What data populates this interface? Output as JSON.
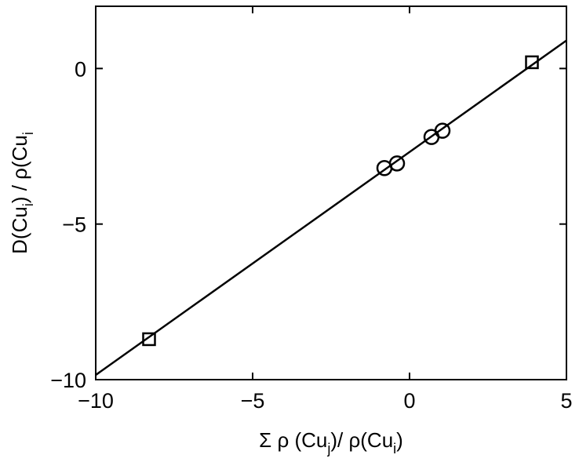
{
  "chart_data": {
    "type": "scatter",
    "title": "",
    "xlabel": {
      "parts": [
        {
          "text": "Σ ρ (Cu",
          "shift": "none"
        },
        {
          "text": "j",
          "shift": "sub"
        },
        {
          "text": ")/ ρ(Cu",
          "shift": "none"
        },
        {
          "text": "i",
          "shift": "sub"
        },
        {
          "text": ")",
          "shift": "none"
        }
      ]
    },
    "ylabel": {
      "parts": [
        {
          "text": "D(Cu",
          "shift": "none"
        },
        {
          "text": "i",
          "shift": "sub"
        },
        {
          "text": ") / ρ(Cu",
          "shift": "none"
        },
        {
          "text": "i",
          "shift": "sub"
        }
      ]
    },
    "xlim": [
      -10,
      5
    ],
    "ylim": [
      -10,
      2
    ],
    "xticks": [
      -10,
      -5,
      0,
      5
    ],
    "yticks": [
      -10,
      -5,
      0
    ],
    "xtick_labels": [
      "−10",
      "−5",
      "0",
      "5"
    ],
    "ytick_labels": [
      "−10",
      "−5",
      "0"
    ],
    "grid": false,
    "legend": "none",
    "series": [
      {
        "marker": "circle",
        "points": [
          {
            "x": -0.8,
            "y": -3.2
          },
          {
            "x": -0.4,
            "y": -3.05
          },
          {
            "x": 0.7,
            "y": -2.2
          },
          {
            "x": 1.05,
            "y": -2.0
          }
        ]
      },
      {
        "marker": "square",
        "points": [
          {
            "x": -8.3,
            "y": -8.7
          },
          {
            "x": 3.9,
            "y": 0.2
          }
        ]
      }
    ],
    "fit_line": {
      "style": "solid",
      "x": [
        -10,
        5
      ],
      "y": [
        -9.85,
        0.9
      ]
    },
    "colors": {
      "marks": "#000000",
      "background": "#ffffff"
    }
  }
}
